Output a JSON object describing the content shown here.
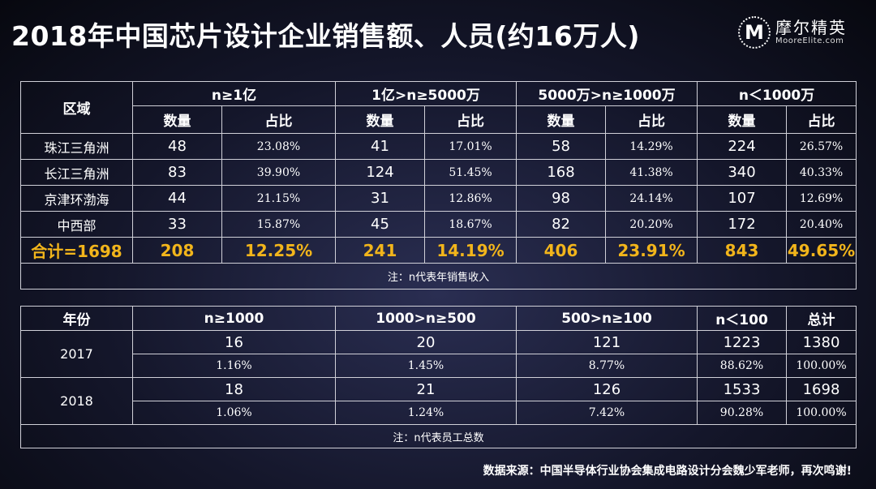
{
  "title": "2018年中国芯片设计企业销售额、人员(约16万人)",
  "logo": {
    "mark": "M",
    "cn": "摩尔精英",
    "en": "MooreElite.com"
  },
  "table1": {
    "region_header": "区域",
    "groups": [
      "n≥1亿",
      "1亿>n≥5000万",
      "5000万>n≥1000万",
      "n＜1000万"
    ],
    "count_label": "数量",
    "share_label": "占比",
    "rows": [
      {
        "region": "珠江三角洲",
        "cells": [
          "48",
          "23.08%",
          "41",
          "17.01%",
          "58",
          "14.29%",
          "224",
          "26.57%"
        ]
      },
      {
        "region": "长江三角洲",
        "cells": [
          "83",
          "39.90%",
          "124",
          "51.45%",
          "168",
          "41.38%",
          "340",
          "40.33%"
        ]
      },
      {
        "region": "京津环渤海",
        "cells": [
          "44",
          "21.15%",
          "31",
          "12.86%",
          "98",
          "24.14%",
          "107",
          "12.69%"
        ]
      },
      {
        "region": "中西部",
        "cells": [
          "33",
          "15.87%",
          "45",
          "18.67%",
          "82",
          "20.20%",
          "172",
          "20.40%"
        ]
      }
    ],
    "total": {
      "label": "合计=1698",
      "cells": [
        "208",
        "12.25%",
        "241",
        "14.19%",
        "406",
        "23.91%",
        "843",
        "49.65%"
      ]
    },
    "note": "注：n代表年销售收入"
  },
  "table2": {
    "headers": [
      "年份",
      "n≥1000",
      "1000>n≥500",
      "500>n≥100",
      "n＜100",
      "总计"
    ],
    "rows": [
      {
        "year": "2017",
        "counts": [
          "16",
          "20",
          "121",
          "1223",
          "1380"
        ],
        "shares": [
          "1.16%",
          "1.45%",
          "8.77%",
          "88.62%",
          "100.00%"
        ]
      },
      {
        "year": "2018",
        "counts": [
          "18",
          "21",
          "126",
          "1533",
          "1698"
        ],
        "shares": [
          "1.06%",
          "1.24%",
          "7.42%",
          "90.28%",
          "100.00%"
        ]
      }
    ],
    "note": "注：n代表员工总数"
  },
  "source": "数据来源：中国半导体行业协会集成电路设计分会魏少军老师，再次鸣谢!"
}
